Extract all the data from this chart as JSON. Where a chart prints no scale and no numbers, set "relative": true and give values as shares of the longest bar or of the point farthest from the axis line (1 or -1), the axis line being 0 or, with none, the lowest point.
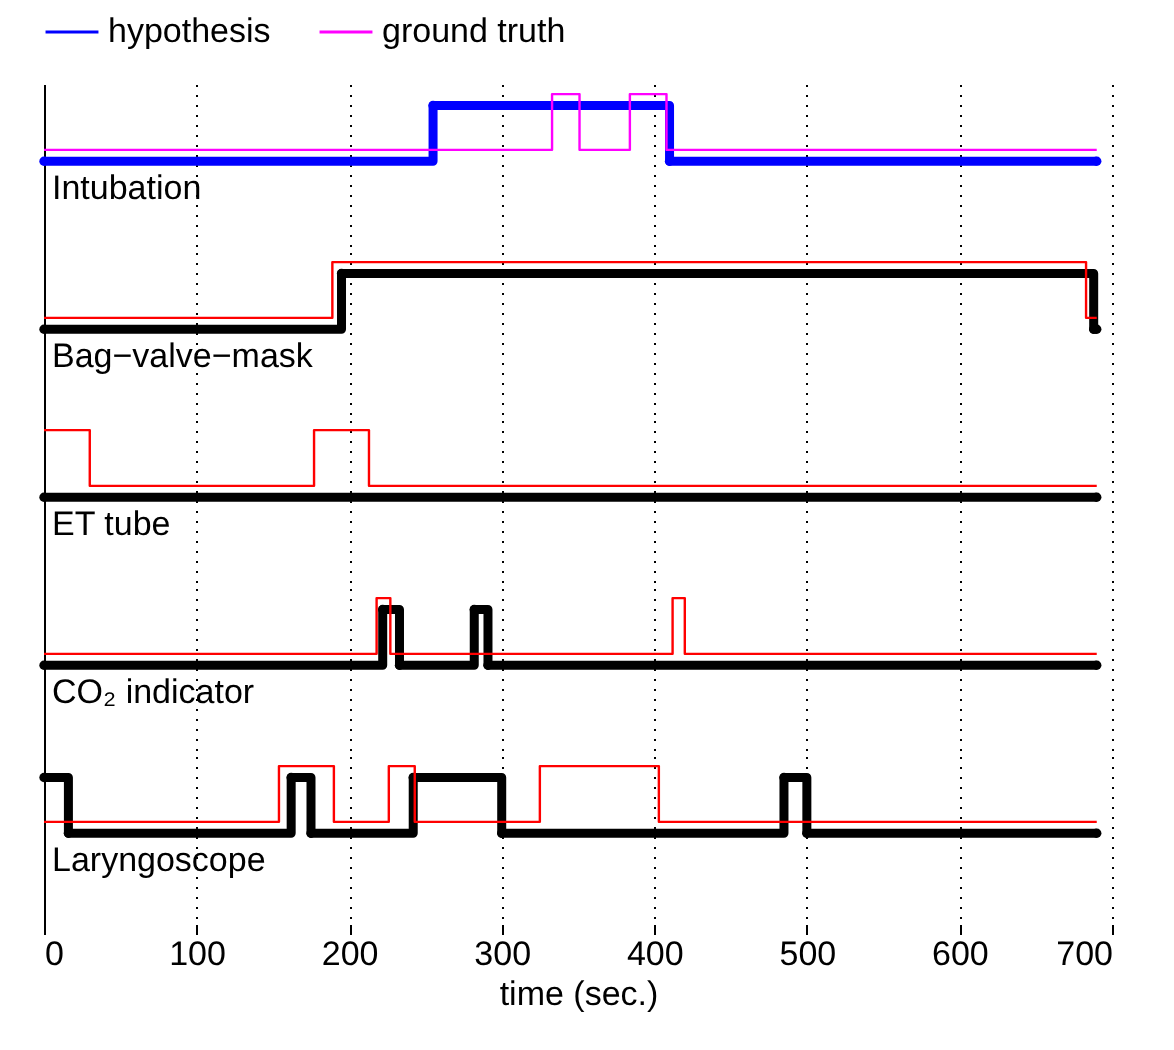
{
  "chart_data": [
    {
      "type": "step",
      "relative": true,
      "xlim": [
        0,
        700
      ],
      "xticks": [
        0,
        100,
        200,
        300,
        400,
        500,
        600,
        700
      ],
      "tick_labels": false,
      "grid": "x",
      "legend": "top",
      "annotations": [
        "Intubation"
      ],
      "series": [
        {
          "name": "hypothesis",
          "color": "#0000ff",
          "marker": "circle",
          "x": [
            0,
            255,
            410,
            690
          ],
          "values": [
            0,
            0.83,
            0,
            0
          ]
        },
        {
          "name": "ground truth",
          "color": "#ff00ff",
          "marker": "none",
          "x": [
            0,
            333,
            351,
            384,
            408,
            690
          ],
          "values": [
            0.17,
            1,
            0.17,
            1,
            0.17,
            0.17
          ]
        }
      ]
    },
    {
      "type": "step",
      "relative": true,
      "xlim": [
        0,
        700
      ],
      "xticks": [
        0,
        100,
        200,
        300,
        400,
        500,
        600,
        700
      ],
      "tick_labels": false,
      "grid": "x",
      "annotations": [
        "Bag−valve−mask"
      ],
      "series": [
        {
          "color": "#000000",
          "marker": "circle",
          "x": [
            0,
            195,
            688,
            690
          ],
          "values": [
            0,
            0.83,
            0,
            0
          ]
        },
        {
          "color": "#ff0000",
          "marker": "none",
          "x": [
            0,
            189,
            683,
            690
          ],
          "values": [
            0.17,
            1,
            0.17,
            0.17
          ]
        }
      ]
    },
    {
      "type": "step",
      "relative": true,
      "xlim": [
        0,
        700
      ],
      "xticks": [
        0,
        100,
        200,
        300,
        400,
        500,
        600,
        700
      ],
      "tick_labels": false,
      "grid": "x",
      "annotations": [
        "ET tube"
      ],
      "series": [
        {
          "color": "#000000",
          "marker": "circle",
          "x": [
            0,
            690
          ],
          "values": [
            0,
            0
          ]
        },
        {
          "color": "#ff0000",
          "marker": "none",
          "x": [
            0,
            30,
            177,
            213,
            690
          ],
          "values": [
            1,
            0.17,
            1,
            0.17,
            0.17
          ]
        }
      ]
    },
    {
      "type": "step",
      "relative": true,
      "xlim": [
        0,
        700
      ],
      "xticks": [
        0,
        100,
        200,
        300,
        400,
        500,
        600,
        700
      ],
      "tick_labels": false,
      "grid": "x",
      "annotations": [
        "CO₂ indicator"
      ],
      "series": [
        {
          "color": "#000000",
          "marker": "circle",
          "x": [
            0,
            222,
            233,
            282,
            291,
            690
          ],
          "values": [
            0,
            0.83,
            0,
            0.83,
            0,
            0
          ]
        },
        {
          "color": "#ff0000",
          "marker": "none",
          "x": [
            0,
            218,
            227,
            412,
            420,
            690
          ],
          "values": [
            0.17,
            1,
            0.17,
            1,
            0.17,
            0.17
          ]
        }
      ]
    },
    {
      "type": "step",
      "relative": true,
      "xlim": [
        0,
        700
      ],
      "xticks": [
        0,
        100,
        200,
        300,
        400,
        500,
        600,
        700
      ],
      "tick_labels": "x",
      "grid": "x",
      "xlabel": "time (sec.)",
      "annotations": [
        "Laryngoscope"
      ],
      "series": [
        {
          "color": "#000000",
          "marker": "circle",
          "x": [
            0,
            16,
            162,
            175,
            242,
            300,
            485,
            500,
            690
          ],
          "values": [
            0.83,
            0,
            0.83,
            0,
            0.83,
            0,
            0.83,
            0,
            0
          ]
        },
        {
          "color": "#ff0000",
          "marker": "none",
          "x": [
            0,
            154,
            190,
            226,
            243,
            325,
            403,
            690
          ],
          "values": [
            0.17,
            1,
            0.17,
            1,
            0.17,
            1,
            0.17,
            0.17
          ]
        }
      ]
    }
  ]
}
